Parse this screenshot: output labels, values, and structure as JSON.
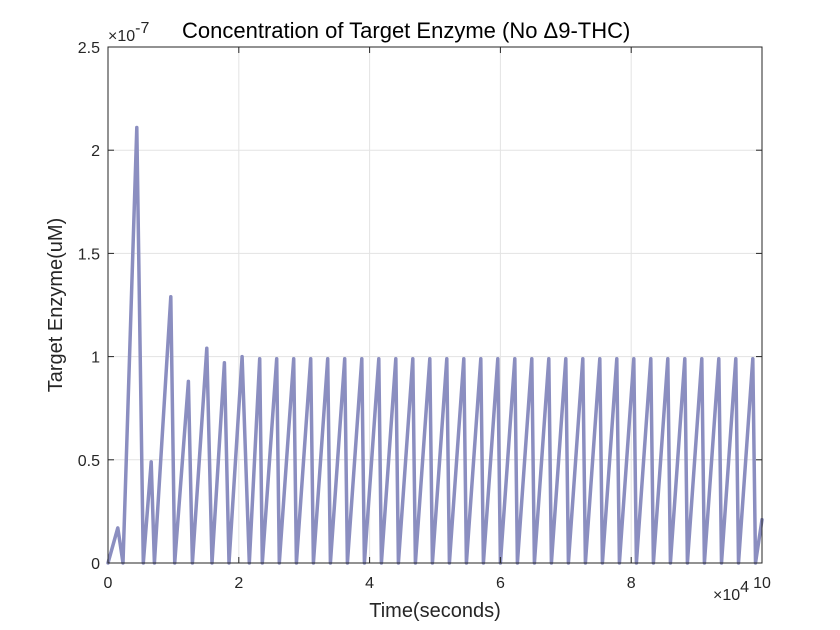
{
  "chart_data": {
    "type": "line",
    "title": "Concentration of Target Enzyme (No Δ9-THC)",
    "xlabel": "Time(seconds)",
    "ylabel": "Target Enzyme(uM)",
    "xlim": [
      0,
      100000
    ],
    "ylim": [
      0,
      2.5e-07
    ],
    "x_exponent_label": "×10",
    "x_exponent_power": "4",
    "y_exponent_label": "×10",
    "y_exponent_power": "-7",
    "x_ticks": [
      0,
      20000,
      40000,
      60000,
      80000,
      100000
    ],
    "x_tick_labels": [
      "0",
      "2",
      "4",
      "6",
      "8",
      "10"
    ],
    "y_ticks": [
      0,
      5e-08,
      1e-07,
      1.5e-07,
      2e-07,
      2.5e-07
    ],
    "y_tick_labels": [
      "0",
      "0.5",
      "1",
      "1.5",
      "2",
      "2.5"
    ],
    "grid": true,
    "line_color": "#8B8EC0",
    "series": [
      {
        "x": [
          0,
          1500,
          2300,
          4400,
          5400,
          6600,
          7100,
          9600,
          10200,
          12300,
          12900,
          15100,
          15900,
          17800,
          18500,
          20500,
          21600,
          23200,
          23600,
          25800,
          26200,
          28400,
          28800,
          31000,
          31400,
          33600,
          34000,
          36200,
          36600,
          38800,
          39200,
          41400,
          41800,
          44000,
          44400,
          46600,
          47000,
          49200,
          49600,
          51800,
          52200,
          54400,
          54800,
          57000,
          57400,
          59600,
          60000,
          62200,
          62600,
          64800,
          65200,
          67400,
          67800,
          70000,
          70400,
          72600,
          73000,
          75200,
          75600,
          77800,
          78200,
          80400,
          80800,
          83000,
          83400,
          85600,
          86000,
          88200,
          88600,
          90800,
          91200,
          93400,
          93800,
          96000,
          96400,
          98600,
          99000,
          100000
        ],
        "y": [
          0,
          1.7e-08,
          0,
          2.11e-07,
          0,
          4.9e-08,
          0,
          1.29e-07,
          0,
          8.8e-08,
          0,
          1.04e-07,
          0,
          9.7e-08,
          0,
          1e-07,
          0,
          9.9e-08,
          0,
          9.9e-08,
          0,
          9.9e-08,
          0,
          9.9e-08,
          0,
          9.9e-08,
          0,
          9.9e-08,
          0,
          9.9e-08,
          0,
          9.9e-08,
          0,
          9.9e-08,
          0,
          9.9e-08,
          0,
          9.9e-08,
          0,
          9.9e-08,
          0,
          9.9e-08,
          0,
          9.9e-08,
          0,
          9.9e-08,
          0,
          9.9e-08,
          0,
          9.9e-08,
          0,
          9.9e-08,
          0,
          9.9e-08,
          0,
          9.9e-08,
          0,
          9.9e-08,
          0,
          9.9e-08,
          0,
          9.9e-08,
          0,
          9.9e-08,
          0,
          9.9e-08,
          0,
          9.9e-08,
          0,
          9.9e-08,
          0,
          9.9e-08,
          0,
          9.9e-08,
          0,
          9.9e-08,
          0,
          2.1e-08
        ]
      }
    ]
  }
}
